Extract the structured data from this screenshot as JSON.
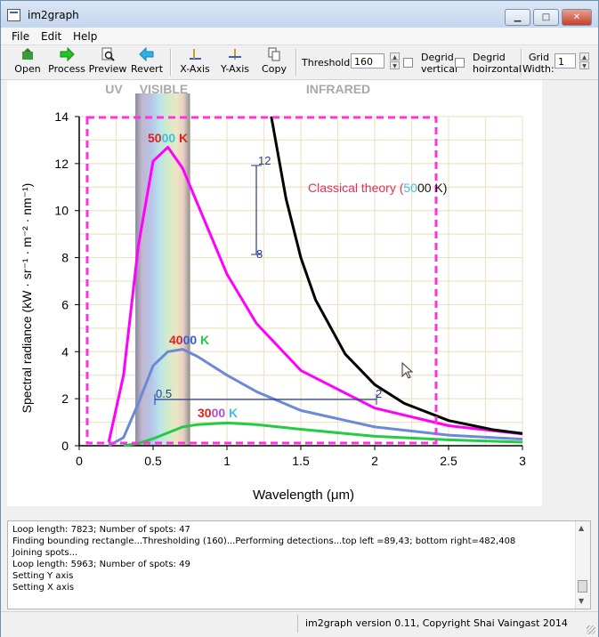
{
  "window": {
    "title": "im2graph",
    "min_glyph": "▁",
    "max_glyph": "□",
    "close_glyph": "✕"
  },
  "menu": {
    "items": [
      "File",
      "Edit",
      "Help"
    ]
  },
  "toolbar": {
    "buttons": [
      {
        "label": "Open",
        "icon": "open-icon"
      },
      {
        "label": "Process",
        "icon": "process-icon"
      },
      {
        "label": "Preview",
        "icon": "preview-icon"
      },
      {
        "label": "Revert",
        "icon": "revert-icon"
      },
      {
        "label": "X-Axis",
        "icon": "x-axis-icon"
      },
      {
        "label": "Y-Axis",
        "icon": "y-axis-icon"
      },
      {
        "label": "Copy",
        "icon": "copy-icon"
      }
    ],
    "threshold_label": "Threshold:",
    "threshold_value": "160",
    "degrid_vertical_label_1": "Degrid",
    "degrid_vertical_label_2": "vertical",
    "degrid_horizontal_label_1": "Degrid",
    "degrid_horizontal_label_2": "hoirzontal",
    "grid_width_label_1": "Grid",
    "grid_width_label_2": "Width:",
    "grid_width_value": "1"
  },
  "chart_data": {
    "type": "line",
    "xlabel": "Wavelength (μm)",
    "ylabel": "Spectral radiance (kW · sr⁻¹ · m⁻² · nm⁻¹)",
    "xlim": [
      0,
      3
    ],
    "ylim": [
      0,
      14
    ],
    "xticks": [
      "0",
      "0.5",
      "1",
      "1.5",
      "2",
      "2.5",
      "3"
    ],
    "yticks": [
      "0",
      "2",
      "4",
      "6",
      "8",
      "10",
      "12",
      "14"
    ],
    "grid": true,
    "band_labels": [
      "UV",
      "VISIBLE",
      "INFRARED"
    ],
    "series": [
      {
        "name": "5000 K",
        "color": "#ff00ff",
        "x": [
          0.2,
          0.3,
          0.4,
          0.5,
          0.6,
          0.7,
          0.8,
          1.0,
          1.2,
          1.5,
          2.0,
          2.5,
          3.0
        ],
        "y": [
          0.15,
          3.0,
          8.5,
          12.1,
          12.7,
          11.8,
          10.3,
          7.3,
          5.2,
          3.2,
          1.6,
          0.85,
          0.5
        ]
      },
      {
        "name": "4000 K",
        "color": "#6a8ad8",
        "x": [
          0.2,
          0.3,
          0.4,
          0.5,
          0.6,
          0.7,
          0.8,
          1.0,
          1.2,
          1.5,
          2.0,
          2.5,
          3.0
        ],
        "y": [
          0.0,
          0.35,
          1.8,
          3.4,
          4.0,
          4.1,
          3.8,
          3.0,
          2.3,
          1.5,
          0.8,
          0.45,
          0.28
        ]
      },
      {
        "name": "3000 K",
        "color": "#22cc44",
        "x": [
          0.3,
          0.4,
          0.5,
          0.6,
          0.7,
          0.8,
          1.0,
          1.2,
          1.5,
          2.0,
          2.5,
          3.0
        ],
        "y": [
          0.0,
          0.1,
          0.3,
          0.55,
          0.8,
          0.9,
          0.97,
          0.9,
          0.7,
          0.4,
          0.25,
          0.15
        ]
      },
      {
        "name": "Classical theory (5000 K)",
        "color": "#000000",
        "x": [
          1.3,
          1.4,
          1.5,
          1.6,
          1.8,
          2.0,
          2.2,
          2.5,
          2.8,
          3.0
        ],
        "y": [
          14.0,
          10.5,
          8.0,
          6.2,
          3.9,
          2.6,
          1.8,
          1.07,
          0.68,
          0.52
        ]
      }
    ],
    "series_labels": {
      "s5000_a": "50",
      "s5000_b": "00",
      "s5000_c": " K",
      "s4000_a": "40",
      "s4000_b": "00",
      "s4000_c": " K",
      "s3000_a": "30",
      "s3000_b": "00",
      "s3000_c": " K",
      "classical_a": "Classical theory (",
      "classical_b": "50",
      "classical_c": "00 K)"
    },
    "calibration": {
      "y_axis_top": "12",
      "y_axis_bottom": "8",
      "x_axis_left": "0.5",
      "x_axis_right": "2"
    }
  },
  "log": {
    "lines": [
      "Loop length: 7823; Number of spots: 47",
      "Finding bounding rectangle...Thresholding (160)...Performing detections...top left =89,43; bottom right=482,408",
      "Joining spots...",
      "Loop length: 5963; Number of spots: 49",
      "Setting Y axis",
      "Setting X axis"
    ]
  },
  "status": {
    "text": "im2graph version 0.11, Copyright Shai Vaingast 2014"
  }
}
